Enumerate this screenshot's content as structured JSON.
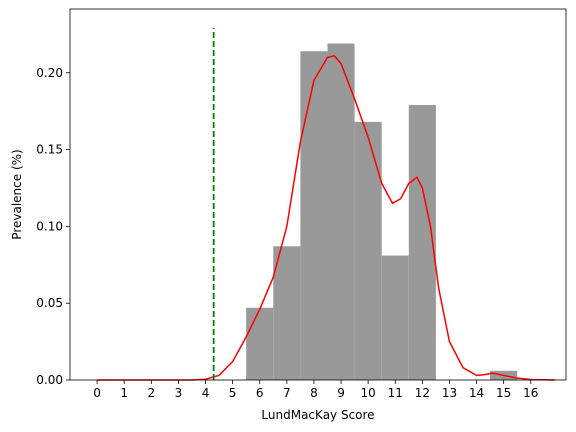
{
  "chart_data": {
    "type": "bar",
    "title": "",
    "xlabel": "LundMacKay Score",
    "ylabel": "Prevalence (%)",
    "xlim": [
      -1,
      17.3
    ],
    "ylim": [
      0,
      0.2415
    ],
    "x_ticks": [
      0,
      1,
      2,
      3,
      4,
      5,
      6,
      7,
      8,
      9,
      10,
      11,
      12,
      13,
      14,
      15,
      16
    ],
    "y_ticks": [
      0.0,
      0.05,
      0.1,
      0.15,
      0.2
    ],
    "y_tick_labels": [
      "0.00",
      "0.05",
      "0.10",
      "0.15",
      "0.20"
    ],
    "histogram": {
      "color": "#999999",
      "bins": [
        {
          "x0": 5.5,
          "x1": 6.5,
          "value": 0.047
        },
        {
          "x0": 6.5,
          "x1": 7.5,
          "value": 0.087
        },
        {
          "x0": 7.5,
          "x1": 8.5,
          "value": 0.214
        },
        {
          "x0": 8.5,
          "x1": 9.5,
          "value": 0.219
        },
        {
          "x0": 9.5,
          "x1": 10.5,
          "value": 0.168
        },
        {
          "x0": 10.5,
          "x1": 11.5,
          "value": 0.081
        },
        {
          "x0": 11.5,
          "x1": 12.5,
          "value": 0.179
        },
        {
          "x0": 14.5,
          "x1": 15.5,
          "value": 0.006
        }
      ]
    },
    "kde": {
      "color": "#ff0000",
      "points": [
        [
          0.0,
          0.0
        ],
        [
          2.0,
          0.0
        ],
        [
          3.5,
          0.0
        ],
        [
          4.0,
          0.0005
        ],
        [
          4.5,
          0.003
        ],
        [
          5.0,
          0.012
        ],
        [
          5.5,
          0.028
        ],
        [
          6.0,
          0.046
        ],
        [
          6.5,
          0.067
        ],
        [
          7.0,
          0.1
        ],
        [
          7.5,
          0.155
        ],
        [
          8.0,
          0.195
        ],
        [
          8.5,
          0.21
        ],
        [
          8.75,
          0.211
        ],
        [
          9.0,
          0.206
        ],
        [
          9.5,
          0.183
        ],
        [
          10.0,
          0.158
        ],
        [
          10.5,
          0.128
        ],
        [
          10.9,
          0.115
        ],
        [
          11.2,
          0.118
        ],
        [
          11.5,
          0.128
        ],
        [
          11.8,
          0.132
        ],
        [
          12.0,
          0.125
        ],
        [
          12.3,
          0.1
        ],
        [
          12.6,
          0.06
        ],
        [
          13.0,
          0.025
        ],
        [
          13.5,
          0.008
        ],
        [
          14.0,
          0.003
        ],
        [
          14.3,
          0.0035
        ],
        [
          14.6,
          0.0045
        ],
        [
          15.0,
          0.003
        ],
        [
          15.5,
          0.0012
        ],
        [
          16.0,
          0.0003
        ],
        [
          16.9,
          0.0
        ]
      ]
    },
    "reference_line": {
      "x": 4.3,
      "y_top": 0.229,
      "color": "#008000",
      "style": "dashed"
    },
    "grid": false,
    "legend": "none"
  }
}
